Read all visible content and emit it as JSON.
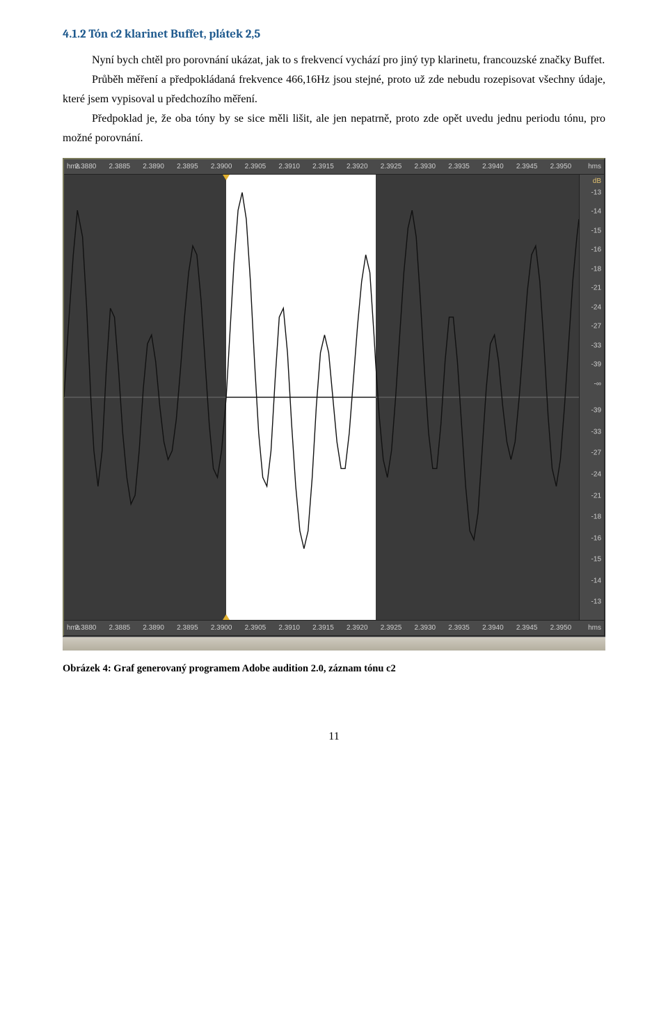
{
  "heading": {
    "text": "4.1.2 Tón c2  klarinet Buffet, plátek 2,5",
    "color": "#1f5a8e",
    "font_size": 17
  },
  "paragraphs": [
    {
      "indent": true,
      "text": "Nyní bych chtěl pro porovnání ukázat, jak to s frekvencí vychází pro jiný typ klarinetu, francouzské značky Buffet."
    },
    {
      "indent": true,
      "text": "Průběh měření a předpokládaná frekvence 466,16Hz  jsou stejné, proto už zde nebudu rozepisovat všechny údaje, které jsem vypisoval u předchozího měření."
    },
    {
      "indent": true,
      "text": "Předpoklad je, že oba tóny by se sice měli lišit, ale jen nepatrně, proto zde opět uvedu jednu periodu tónu, pro možné porovnání."
    }
  ],
  "chart": {
    "type": "waveform",
    "background_dark": "#3a3a3a",
    "highlight_color": "#ffffff",
    "highlight_range_pct": [
      31.5,
      60.5
    ],
    "line_color_dark": "#111111",
    "line_color_light": "#111111",
    "line_width": 1.4,
    "x_unit_label": "hms",
    "x_ticks": [
      "2.3880",
      "2.3885",
      "2.3890",
      "2.3895",
      "2.3900",
      "2.3905",
      "2.3910",
      "2.3915",
      "2.3920",
      "2.3925",
      "2.3930",
      "2.3935",
      "2.3940",
      "2.3945",
      "2.3950"
    ],
    "y_unit_label": "dB",
    "y_ticks_top": [
      "-13",
      "-14",
      "-15",
      "-16",
      "-18",
      "-21",
      "-24",
      "-27",
      "-33",
      "-39",
      "-∞"
    ],
    "y_ticks_bottom": [
      "-39",
      "-33",
      "-27",
      "-24",
      "-21",
      "-18",
      "-16",
      "-15",
      "-14",
      "-13"
    ],
    "marker_color": "#e0b030",
    "marker_pct": 31.5,
    "waveform_points": [
      [
        0,
        0.5
      ],
      [
        0.8,
        0.35
      ],
      [
        1.8,
        0.18
      ],
      [
        2.6,
        0.08
      ],
      [
        3.6,
        0.14
      ],
      [
        4.4,
        0.3
      ],
      [
        5.2,
        0.5
      ],
      [
        5.8,
        0.62
      ],
      [
        6.6,
        0.7
      ],
      [
        7.4,
        0.62
      ],
      [
        8.2,
        0.44
      ],
      [
        9.0,
        0.3
      ],
      [
        9.8,
        0.32
      ],
      [
        10.6,
        0.44
      ],
      [
        11.4,
        0.58
      ],
      [
        12.2,
        0.68
      ],
      [
        13.0,
        0.74
      ],
      [
        13.8,
        0.72
      ],
      [
        14.6,
        0.62
      ],
      [
        15.4,
        0.48
      ],
      [
        16.2,
        0.38
      ],
      [
        17.0,
        0.36
      ],
      [
        17.8,
        0.42
      ],
      [
        18.6,
        0.52
      ],
      [
        19.4,
        0.6
      ],
      [
        20.2,
        0.64
      ],
      [
        21.0,
        0.62
      ],
      [
        21.8,
        0.55
      ],
      [
        22.6,
        0.44
      ],
      [
        23.4,
        0.32
      ],
      [
        24.2,
        0.22
      ],
      [
        25.0,
        0.16
      ],
      [
        25.8,
        0.18
      ],
      [
        26.6,
        0.28
      ],
      [
        27.4,
        0.42
      ],
      [
        28.2,
        0.56
      ],
      [
        29.0,
        0.66
      ],
      [
        29.8,
        0.68
      ],
      [
        30.6,
        0.62
      ],
      [
        31.5,
        0.5
      ],
      [
        32.2,
        0.36
      ],
      [
        33.0,
        0.2
      ],
      [
        33.8,
        0.08
      ],
      [
        34.6,
        0.04
      ],
      [
        35.4,
        0.1
      ],
      [
        36.2,
        0.24
      ],
      [
        37.0,
        0.42
      ],
      [
        37.8,
        0.58
      ],
      [
        38.6,
        0.68
      ],
      [
        39.4,
        0.7
      ],
      [
        40.2,
        0.62
      ],
      [
        41.0,
        0.46
      ],
      [
        41.8,
        0.32
      ],
      [
        42.6,
        0.3
      ],
      [
        43.4,
        0.4
      ],
      [
        44.2,
        0.56
      ],
      [
        45.0,
        0.7
      ],
      [
        45.8,
        0.8
      ],
      [
        46.6,
        0.84
      ],
      [
        47.4,
        0.8
      ],
      [
        48.2,
        0.68
      ],
      [
        49.0,
        0.52
      ],
      [
        49.8,
        0.4
      ],
      [
        50.6,
        0.36
      ],
      [
        51.4,
        0.4
      ],
      [
        52.2,
        0.5
      ],
      [
        53.0,
        0.6
      ],
      [
        53.8,
        0.66
      ],
      [
        54.6,
        0.66
      ],
      [
        55.4,
        0.58
      ],
      [
        56.2,
        0.46
      ],
      [
        57.0,
        0.34
      ],
      [
        57.8,
        0.24
      ],
      [
        58.6,
        0.18
      ],
      [
        59.4,
        0.22
      ],
      [
        60.2,
        0.36
      ],
      [
        60.5,
        0.42
      ],
      [
        61.2,
        0.54
      ],
      [
        62.0,
        0.64
      ],
      [
        62.8,
        0.68
      ],
      [
        63.6,
        0.62
      ],
      [
        64.4,
        0.5
      ],
      [
        65.2,
        0.36
      ],
      [
        66.0,
        0.22
      ],
      [
        66.8,
        0.12
      ],
      [
        67.6,
        0.08
      ],
      [
        68.4,
        0.14
      ],
      [
        69.2,
        0.28
      ],
      [
        70.0,
        0.44
      ],
      [
        70.8,
        0.58
      ],
      [
        71.6,
        0.66
      ],
      [
        72.4,
        0.66
      ],
      [
        73.2,
        0.56
      ],
      [
        74.0,
        0.42
      ],
      [
        74.8,
        0.32
      ],
      [
        75.6,
        0.32
      ],
      [
        76.4,
        0.42
      ],
      [
        77.2,
        0.56
      ],
      [
        78.0,
        0.7
      ],
      [
        78.8,
        0.8
      ],
      [
        79.6,
        0.82
      ],
      [
        80.4,
        0.76
      ],
      [
        81.2,
        0.62
      ],
      [
        82.0,
        0.48
      ],
      [
        82.8,
        0.38
      ],
      [
        83.6,
        0.36
      ],
      [
        84.4,
        0.42
      ],
      [
        85.2,
        0.52
      ],
      [
        86.0,
        0.6
      ],
      [
        86.8,
        0.64
      ],
      [
        87.6,
        0.6
      ],
      [
        88.4,
        0.5
      ],
      [
        89.2,
        0.38
      ],
      [
        90.0,
        0.26
      ],
      [
        90.8,
        0.18
      ],
      [
        91.6,
        0.16
      ],
      [
        92.4,
        0.24
      ],
      [
        93.2,
        0.38
      ],
      [
        94.0,
        0.54
      ],
      [
        94.8,
        0.66
      ],
      [
        95.6,
        0.7
      ],
      [
        96.4,
        0.64
      ],
      [
        97.2,
        0.52
      ],
      [
        98.0,
        0.38
      ],
      [
        98.8,
        0.24
      ],
      [
        99.6,
        0.14
      ],
      [
        100,
        0.1
      ]
    ]
  },
  "caption": "Obrázek 4: Graf generovaný programem Adobe audition 2.0, záznam tónu c2",
  "page_number": "11"
}
